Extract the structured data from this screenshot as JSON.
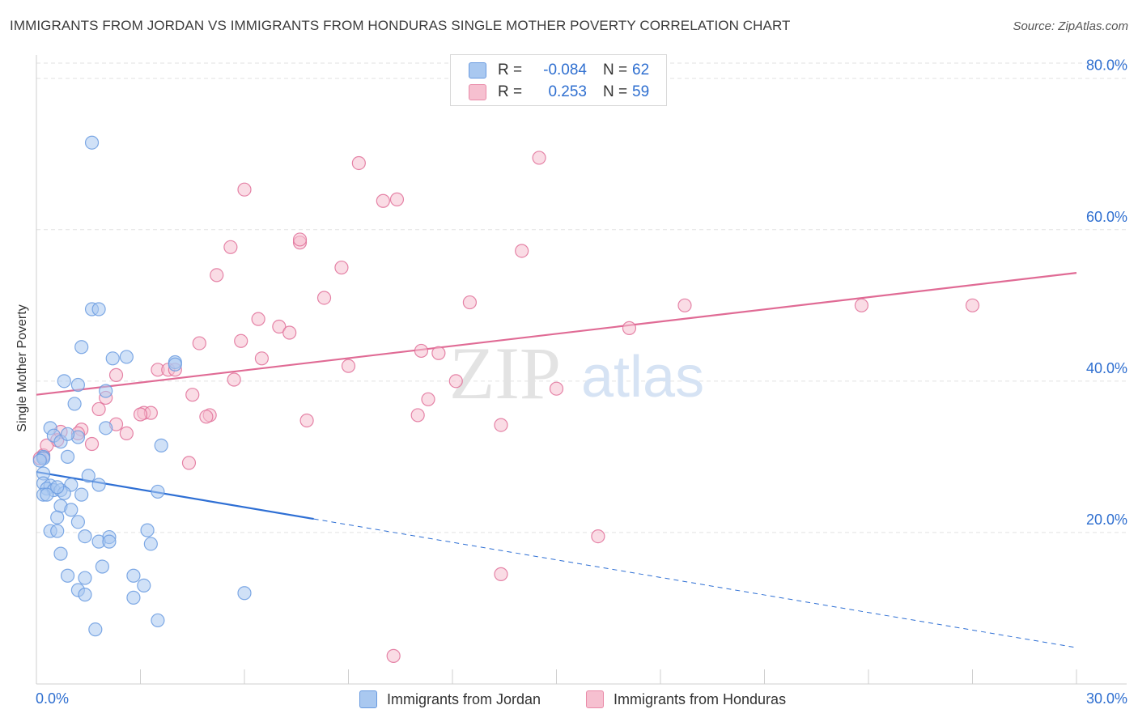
{
  "title": "IMMIGRANTS FROM JORDAN VS IMMIGRANTS FROM HONDURAS SINGLE MOTHER POVERTY CORRELATION CHART",
  "source": "Source: ZipAtlas.com",
  "watermark": {
    "zip": "ZIP",
    "atlas": "atlas"
  },
  "legend": {
    "rows": [
      {
        "r_label": "R =",
        "r_value": "-0.084",
        "n_label": "N =",
        "n_value": "62",
        "color": "#a9c8f0",
        "border": "#6a9be0"
      },
      {
        "r_label": "R =",
        "r_value": "0.253",
        "n_label": "N =",
        "n_value": "59",
        "color": "#f6c0d0",
        "border": "#e98aa8"
      }
    ]
  },
  "bottom_legend": [
    {
      "label": "Immigrants from Jordan",
      "color": "#a9c8f0",
      "border": "#6a9be0"
    },
    {
      "label": "Immigrants from Honduras",
      "color": "#f6c0d0",
      "border": "#e98aa8"
    }
  ],
  "chart_data": {
    "type": "scatter",
    "title": "IMMIGRANTS FROM JORDAN VS IMMIGRANTS FROM HONDURAS SINGLE MOTHER POVERTY CORRELATION CHART",
    "xlabel": "",
    "ylabel": "Single Mother Poverty",
    "xlim": [
      0,
      30
    ],
    "ylim": [
      0,
      82
    ],
    "x_tick_labels": [
      "0.0%",
      "30.0%"
    ],
    "y_ticks": [
      20,
      40,
      60,
      80
    ],
    "y_tick_labels": [
      "20.0%",
      "40.0%",
      "60.0%",
      "80.0%"
    ],
    "grid": true,
    "series": [
      {
        "name": "Immigrants from Jordan",
        "color": "#6a9be0",
        "fill": "#a9c8f0",
        "trend": {
          "x1": 0,
          "y1": 28.0,
          "x2": 8,
          "y2": 21.8,
          "dash_to_x": 30,
          "dash_to_y": 4.8
        },
        "points": [
          [
            1.6,
            71.5
          ],
          [
            1.6,
            49.5
          ],
          [
            1.8,
            49.5
          ],
          [
            1.3,
            44.5
          ],
          [
            2.2,
            43.0
          ],
          [
            2.6,
            43.2
          ],
          [
            4.0,
            42.5
          ],
          [
            4.0,
            42.2
          ],
          [
            0.8,
            40.0
          ],
          [
            1.2,
            39.5
          ],
          [
            2.0,
            38.7
          ],
          [
            1.1,
            37.0
          ],
          [
            0.4,
            33.8
          ],
          [
            0.5,
            32.8
          ],
          [
            1.2,
            32.6
          ],
          [
            0.7,
            32.0
          ],
          [
            0.9,
            33.0
          ],
          [
            2.0,
            33.8
          ],
          [
            3.6,
            31.5
          ],
          [
            0.2,
            30.0
          ],
          [
            0.2,
            29.8
          ],
          [
            0.9,
            30.0
          ],
          [
            0.2,
            27.8
          ],
          [
            1.5,
            27.5
          ],
          [
            0.2,
            26.5
          ],
          [
            0.4,
            26.2
          ],
          [
            1.0,
            26.3
          ],
          [
            1.8,
            26.3
          ],
          [
            0.3,
            25.8
          ],
          [
            0.5,
            25.6
          ],
          [
            0.7,
            25.6
          ],
          [
            0.2,
            25.0
          ],
          [
            0.3,
            25.0
          ],
          [
            0.8,
            25.2
          ],
          [
            1.3,
            25.0
          ],
          [
            3.5,
            25.4
          ],
          [
            0.7,
            23.5
          ],
          [
            1.0,
            23.0
          ],
          [
            0.6,
            22.0
          ],
          [
            1.2,
            21.4
          ],
          [
            0.4,
            20.2
          ],
          [
            0.6,
            20.2
          ],
          [
            3.2,
            20.3
          ],
          [
            1.4,
            19.5
          ],
          [
            2.1,
            19.4
          ],
          [
            1.8,
            18.8
          ],
          [
            2.1,
            18.8
          ],
          [
            3.3,
            18.5
          ],
          [
            0.7,
            17.2
          ],
          [
            1.9,
            15.5
          ],
          [
            0.9,
            14.3
          ],
          [
            2.8,
            14.3
          ],
          [
            1.4,
            14.0
          ],
          [
            3.1,
            13.0
          ],
          [
            1.2,
            12.4
          ],
          [
            1.4,
            11.8
          ],
          [
            2.8,
            11.4
          ],
          [
            6.0,
            12.0
          ],
          [
            3.5,
            8.4
          ],
          [
            1.7,
            7.2
          ],
          [
            0.1,
            29.5
          ],
          [
            0.6,
            26.0
          ]
        ]
      },
      {
        "name": "Immigrants from Honduras",
        "color": "#e07099",
        "fill": "#f6c0d0",
        "trend": {
          "x1": 0,
          "y1": 38.2,
          "x2": 30,
          "y2": 54.3
        },
        "points": [
          [
            9.3,
            68.8
          ],
          [
            14.5,
            69.5
          ],
          [
            6.0,
            65.3
          ],
          [
            10.4,
            64.0
          ],
          [
            10.0,
            63.8
          ],
          [
            7.6,
            58.3
          ],
          [
            7.6,
            58.7
          ],
          [
            5.6,
            57.7
          ],
          [
            14.0,
            57.2
          ],
          [
            5.2,
            54.0
          ],
          [
            8.8,
            55.0
          ],
          [
            8.3,
            51.0
          ],
          [
            12.5,
            50.4
          ],
          [
            18.7,
            50.0
          ],
          [
            23.8,
            50.0
          ],
          [
            27.0,
            50.0
          ],
          [
            6.4,
            48.2
          ],
          [
            7.0,
            47.2
          ],
          [
            7.3,
            46.4
          ],
          [
            17.1,
            47.0
          ],
          [
            4.7,
            45.0
          ],
          [
            5.9,
            45.3
          ],
          [
            11.1,
            44.0
          ],
          [
            11.6,
            43.7
          ],
          [
            6.5,
            43.0
          ],
          [
            3.5,
            41.5
          ],
          [
            3.8,
            41.5
          ],
          [
            4.0,
            41.5
          ],
          [
            9.0,
            42.0
          ],
          [
            2.3,
            40.8
          ],
          [
            5.7,
            40.2
          ],
          [
            12.1,
            40.0
          ],
          [
            15.0,
            39.0
          ],
          [
            4.5,
            38.2
          ],
          [
            2.0,
            37.8
          ],
          [
            11.3,
            37.6
          ],
          [
            1.8,
            36.3
          ],
          [
            3.1,
            35.8
          ],
          [
            3.3,
            35.8
          ],
          [
            3.0,
            35.6
          ],
          [
            5.0,
            35.5
          ],
          [
            4.9,
            35.3
          ],
          [
            11.0,
            35.5
          ],
          [
            7.8,
            34.8
          ],
          [
            13.4,
            34.2
          ],
          [
            2.3,
            34.3
          ],
          [
            1.3,
            33.6
          ],
          [
            0.7,
            33.3
          ],
          [
            1.2,
            33.1
          ],
          [
            2.6,
            33.1
          ],
          [
            0.6,
            32.2
          ],
          [
            1.6,
            31.7
          ],
          [
            0.2,
            30.2
          ],
          [
            0.1,
            29.8
          ],
          [
            4.4,
            29.2
          ],
          [
            16.2,
            19.5
          ],
          [
            13.4,
            14.5
          ],
          [
            10.3,
            3.7
          ],
          [
            0.3,
            31.5
          ]
        ]
      }
    ]
  }
}
